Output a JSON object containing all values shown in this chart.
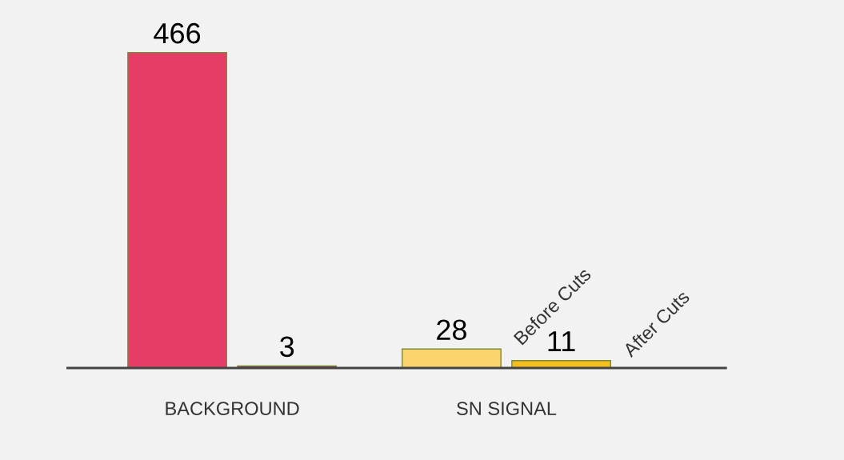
{
  "chart_data": {
    "type": "bar",
    "categories": [
      "BACKGROUND",
      "SN SIGNAL"
    ],
    "series": [
      {
        "name": "Before Cuts",
        "colors": [
          "#e63d66",
          "#fbd46e"
        ],
        "values": [
          466,
          28
        ]
      },
      {
        "name": "After Cuts",
        "colors": [
          "#c9294e",
          "#f2bf1c"
        ],
        "values": [
          3,
          11
        ]
      }
    ],
    "data_labels": true,
    "grid": false,
    "legend": false,
    "tick_labels": "x"
  }
}
